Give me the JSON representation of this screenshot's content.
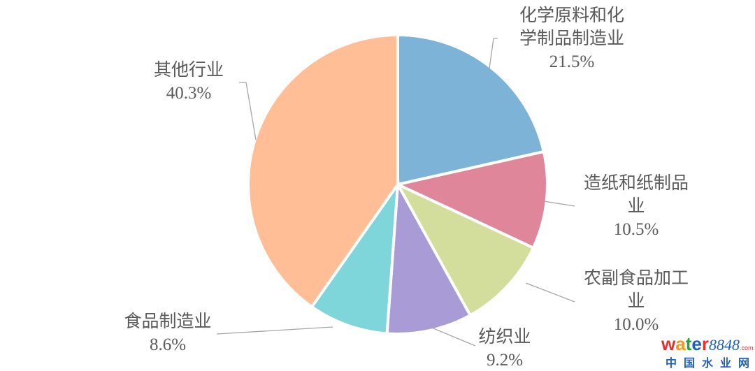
{
  "chart_data": {
    "type": "pie",
    "start_angle": "top",
    "direction": "clockwise",
    "slices": [
      {
        "label": [
          "化学原料和化",
          "学制品制造业"
        ],
        "value": 21.5,
        "display": "21.5%",
        "color": "#7EB3D8"
      },
      {
        "label": [
          "造纸和纸制品",
          "业"
        ],
        "value": 10.5,
        "display": "10.5%",
        "color": "#E0869B"
      },
      {
        "label": [
          "农副食品加工",
          "业"
        ],
        "value": 10.0,
        "display": "10.0%",
        "color": "#D3DE9C"
      },
      {
        "label": [
          "纺织业"
        ],
        "value": 9.2,
        "display": "9.2%",
        "color": "#A99BD6"
      },
      {
        "label": [
          "食品制造业"
        ],
        "value": 8.6,
        "display": "8.6%",
        "color": "#7FD6DA"
      },
      {
        "label": [
          "其他行业"
        ],
        "value": 40.3,
        "display": "40.3%",
        "color": "#FFBE96"
      }
    ]
  },
  "watermark": {
    "brand": "water8848",
    "domain": ".com",
    "subtitle": "中国水业网"
  }
}
